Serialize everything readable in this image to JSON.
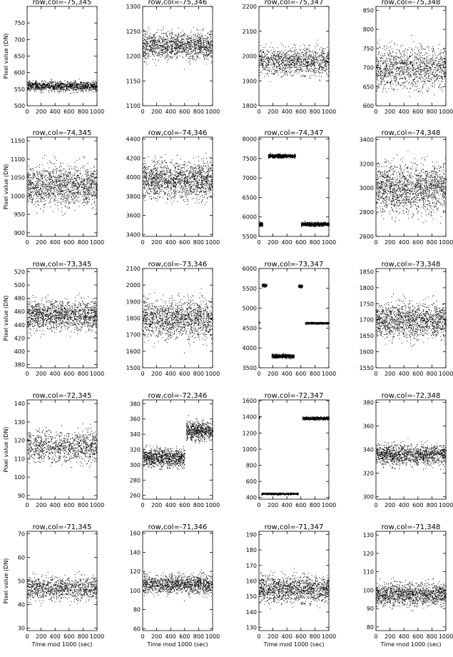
{
  "figure": {
    "ylabel": "Pixel value (DN)",
    "xlabel": "Time mod 1000 (sec)",
    "point_color": "#000000"
  },
  "chart_data": [
    {
      "type": "scatter",
      "title": "row,col=-75,345",
      "xlim": [
        0,
        1000
      ],
      "ylim": [
        500,
        800
      ],
      "yticks": [
        500,
        550,
        600,
        650,
        700,
        750
      ],
      "xticks": [
        0,
        200,
        400,
        600,
        800,
        1000
      ],
      "ylabel": "Pixel value (DN)",
      "xlabel": "",
      "series": [
        {
          "x": [
            0,
            1000
          ],
          "y": [
            560,
            560
          ],
          "spread": 12,
          "density": 1100
        }
      ]
    },
    {
      "type": "scatter",
      "title": "row,col=-75,346",
      "xlim": [
        0,
        1000
      ],
      "ylim": [
        1100,
        1300
      ],
      "yticks": [
        1100,
        1150,
        1200,
        1250,
        1300
      ],
      "xticks": [
        0,
        200,
        400,
        600,
        800,
        1000
      ],
      "xlabel": "",
      "series": [
        {
          "x": [
            0,
            1000
          ],
          "y": [
            1222,
            1222
          ],
          "spread": 22,
          "density": 1300
        }
      ]
    },
    {
      "type": "scatter",
      "title": "row,col=-75,347",
      "xlim": [
        0,
        1000
      ],
      "ylim": [
        1800,
        2200
      ],
      "yticks": [
        1800,
        1900,
        2000,
        2100,
        2200
      ],
      "xticks": [
        0,
        200,
        400,
        600,
        800,
        1000
      ],
      "xlabel": "",
      "series": [
        {
          "x": [
            0,
            1000
          ],
          "y": [
            1980,
            1980
          ],
          "spread": 45,
          "density": 1100
        }
      ]
    },
    {
      "type": "scatter",
      "title": "row,col=-75,348",
      "xlim": [
        0,
        1000
      ],
      "ylim": [
        600,
        860
      ],
      "yticks": [
        600,
        650,
        700,
        750,
        800,
        850
      ],
      "xticks": [
        0,
        200,
        400,
        600,
        800,
        1000
      ],
      "xlabel": "",
      "series": [
        {
          "x": [
            0,
            1000
          ],
          "y": [
            700,
            700
          ],
          "spread": 45,
          "density": 1200
        }
      ]
    },
    {
      "type": "scatter",
      "title": "row,col=-74,345",
      "xlim": [
        0,
        1000
      ],
      "ylim": [
        890,
        1160
      ],
      "yticks": [
        900,
        950,
        1000,
        1050,
        1100,
        1150
      ],
      "xticks": [
        0,
        200,
        400,
        600,
        800,
        1000
      ],
      "ylabel": "Pixel value (DN)",
      "xlabel": "",
      "series": [
        {
          "x": [
            0,
            1000
          ],
          "y": [
            1030,
            1030
          ],
          "spread": 45,
          "density": 1400
        }
      ]
    },
    {
      "type": "scatter",
      "title": "row,col=-74,346",
      "xlim": [
        0,
        1000
      ],
      "ylim": [
        3380,
        4420
      ],
      "yticks": [
        3400,
        3600,
        3800,
        4000,
        4200,
        4400
      ],
      "xticks": [
        0,
        200,
        400,
        600,
        800,
        1000
      ],
      "xlabel": "",
      "series": [
        {
          "x": [
            0,
            1000
          ],
          "y": [
            3980,
            3980
          ],
          "spread": 160,
          "density": 1500
        }
      ]
    },
    {
      "type": "scatter",
      "title": "row,col=-74,347",
      "xlim": [
        0,
        1000
      ],
      "ylim": [
        5500,
        8050
      ],
      "yticks": [
        5500,
        6000,
        6500,
        7000,
        7500,
        8000
      ],
      "xticks": [
        0,
        200,
        400,
        600,
        800,
        1000
      ],
      "xlabel": "",
      "series": [
        {
          "x": [
            0,
            50
          ],
          "y": [
            5820,
            5820
          ],
          "spread": 40,
          "density": 120
        },
        {
          "x": [
            130,
            520
          ],
          "y": [
            7570,
            7570
          ],
          "spread": 40,
          "density": 700
        },
        {
          "x": [
            600,
            1000
          ],
          "y": [
            5820,
            5820
          ],
          "spread": 40,
          "density": 800
        }
      ]
    },
    {
      "type": "scatter",
      "title": "row,col=-74,348",
      "xlim": [
        0,
        1000
      ],
      "ylim": [
        2600,
        3420
      ],
      "yticks": [
        2600,
        2800,
        3000,
        3200,
        3400
      ],
      "xticks": [
        0,
        200,
        400,
        600,
        800,
        1000
      ],
      "xlabel": "",
      "series": [
        {
          "x": [
            0,
            1000
          ],
          "y": [
            3000,
            3000
          ],
          "spread": 160,
          "density": 1600
        }
      ]
    },
    {
      "type": "scatter",
      "title": "row,col=-73,345",
      "xlim": [
        0,
        1000
      ],
      "ylim": [
        375,
        525
      ],
      "yticks": [
        380,
        400,
        420,
        440,
        460,
        480,
        500,
        520
      ],
      "xticks": [
        0,
        200,
        400,
        600,
        800,
        1000
      ],
      "ylabel": "Pixel value (DN)",
      "xlabel": "",
      "series": [
        {
          "x": [
            0,
            1000
          ],
          "y": [
            455,
            455
          ],
          "spread": 18,
          "density": 1400
        }
      ]
    },
    {
      "type": "scatter",
      "title": "row,col=-73,346",
      "xlim": [
        0,
        1000
      ],
      "ylim": [
        1500,
        2100
      ],
      "yticks": [
        1500,
        1600,
        1700,
        1800,
        1900,
        2000,
        2100
      ],
      "xticks": [
        0,
        200,
        400,
        600,
        800,
        1000
      ],
      "xlabel": "",
      "series": [
        {
          "x": [
            0,
            1000
          ],
          "y": [
            1800,
            1800
          ],
          "spread": 95,
          "density": 1400
        }
      ]
    },
    {
      "type": "scatter",
      "title": "row,col=-73,347",
      "xlim": [
        0,
        1000
      ],
      "ylim": [
        3500,
        6000
      ],
      "yticks": [
        3500,
        4000,
        4500,
        5000,
        5500,
        6000
      ],
      "xticks": [
        0,
        200,
        400,
        600,
        800,
        1000
      ],
      "xlabel": "",
      "series": [
        {
          "x": [
            0,
            10
          ],
          "y": [
            4640,
            4640
          ],
          "spread": 20,
          "density": 10
        },
        {
          "x": [
            40,
            110
          ],
          "y": [
            5580,
            5580
          ],
          "spread": 30,
          "density": 140
        },
        {
          "x": [
            180,
            500
          ],
          "y": [
            3800,
            3800
          ],
          "spread": 40,
          "density": 600
        },
        {
          "x": [
            560,
            620
          ],
          "y": [
            5560,
            5560
          ],
          "spread": 30,
          "density": 120
        },
        {
          "x": [
            660,
            1000
          ],
          "y": [
            4630,
            4630
          ],
          "spread": 20,
          "density": 600
        }
      ]
    },
    {
      "type": "scatter",
      "title": "row,col=-73,348",
      "xlim": [
        0,
        1000
      ],
      "ylim": [
        1550,
        1860
      ],
      "yticks": [
        1550,
        1600,
        1650,
        1700,
        1750,
        1800,
        1850
      ],
      "xticks": [
        0,
        200,
        400,
        600,
        800,
        1000
      ],
      "xlabel": "",
      "series": [
        {
          "x": [
            0,
            1000
          ],
          "y": [
            1700,
            1700
          ],
          "spread": 45,
          "density": 1400
        }
      ]
    },
    {
      "type": "scatter",
      "title": "row,col=-72,345",
      "xlim": [
        0,
        1000
      ],
      "ylim": [
        88,
        142
      ],
      "yticks": [
        90,
        100,
        110,
        120,
        130,
        140
      ],
      "xticks": [
        0,
        200,
        400,
        600,
        800,
        1000
      ],
      "ylabel": "Pixel value (DN)",
      "xlabel": "",
      "series": [
        {
          "x": [
            0,
            1000
          ],
          "y": [
            117,
            117
          ],
          "spread": 7,
          "density": 1000
        }
      ]
    },
    {
      "type": "scatter",
      "title": "row,col=-72,346",
      "xlim": [
        0,
        1000
      ],
      "ylim": [
        255,
        385
      ],
      "yticks": [
        260,
        280,
        300,
        320,
        340,
        360,
        380
      ],
      "xticks": [
        0,
        200,
        400,
        600,
        800,
        1000
      ],
      "xlabel": "",
      "series": [
        {
          "x": [
            0,
            600
          ],
          "y": [
            310,
            310
          ],
          "spread": 10,
          "density": 900
        },
        {
          "x": [
            620,
            1000
          ],
          "y": [
            345,
            345
          ],
          "spread": 10,
          "density": 600
        }
      ]
    },
    {
      "type": "scatter",
      "title": "row,col=-72,347",
      "xlim": [
        0,
        1000
      ],
      "ylim": [
        380,
        1610
      ],
      "yticks": [
        400,
        600,
        800,
        1000,
        1200,
        1400,
        1600
      ],
      "xticks": [
        0,
        200,
        400,
        600,
        800,
        1000
      ],
      "xlabel": "",
      "series": [
        {
          "x": [
            0,
            10
          ],
          "y": [
            1390,
            1390
          ],
          "spread": 10,
          "density": 10
        },
        {
          "x": [
            30,
            560
          ],
          "y": [
            450,
            450
          ],
          "spread": 10,
          "density": 700
        },
        {
          "x": [
            620,
            1000
          ],
          "y": [
            1385,
            1385
          ],
          "spread": 15,
          "density": 600
        }
      ]
    },
    {
      "type": "scatter",
      "title": "row,col=-72,348",
      "xlim": [
        0,
        1000
      ],
      "ylim": [
        298,
        382
      ],
      "yticks": [
        300,
        320,
        340,
        360,
        380
      ],
      "xticks": [
        0,
        200,
        400,
        600,
        800,
        1000
      ],
      "xlabel": "",
      "series": [
        {
          "x": [
            0,
            1000
          ],
          "y": [
            336,
            336
          ],
          "spread": 7,
          "density": 1300
        }
      ]
    },
    {
      "type": "scatter",
      "title": "row,col=-71,345",
      "xlim": [
        0,
        1000
      ],
      "ylim": [
        29,
        71
      ],
      "yticks": [
        30,
        40,
        50,
        60,
        70
      ],
      "xticks": [
        0,
        200,
        400,
        600,
        800,
        1000
      ],
      "ylabel": "Pixel value (DN)",
      "xlabel": "Time mod 1000 (sec)",
      "series": [
        {
          "x": [
            0,
            1000
          ],
          "y": [
            47,
            47
          ],
          "spread": 4,
          "density": 1000
        }
      ]
    },
    {
      "type": "scatter",
      "title": "row,col=-71,346",
      "xlim": [
        0,
        1000
      ],
      "ylim": [
        58,
        162
      ],
      "yticks": [
        60,
        80,
        100,
        120,
        140,
        160
      ],
      "xticks": [
        0,
        200,
        400,
        600,
        800,
        1000
      ],
      "xlabel": "Time mod 1000 (sec)",
      "series": [
        {
          "x": [
            0,
            1000
          ],
          "y": [
            107,
            107
          ],
          "spread": 8,
          "density": 1200
        }
      ]
    },
    {
      "type": "scatter",
      "title": "row,col=-71,347",
      "xlim": [
        0,
        1000
      ],
      "ylim": [
        128,
        192
      ],
      "yticks": [
        130,
        140,
        150,
        160,
        170,
        180,
        190
      ],
      "xticks": [
        0,
        200,
        400,
        600,
        800,
        1000
      ],
      "xlabel": "Time mod 1000 (sec)",
      "series": [
        {
          "x": [
            0,
            1000
          ],
          "y": [
            155,
            155
          ],
          "spread": 7,
          "density": 1300
        }
      ]
    },
    {
      "type": "scatter",
      "title": "row,col=-71,348",
      "xlim": [
        0,
        1000
      ],
      "ylim": [
        78,
        132
      ],
      "yticks": [
        80,
        90,
        100,
        110,
        120,
        130
      ],
      "xticks": [
        0,
        200,
        400,
        600,
        800,
        1000
      ],
      "xlabel": "Time mod 1000 (sec)",
      "series": [
        {
          "x": [
            0,
            1000
          ],
          "y": [
            98,
            98
          ],
          "spread": 5,
          "density": 1300
        }
      ]
    }
  ]
}
